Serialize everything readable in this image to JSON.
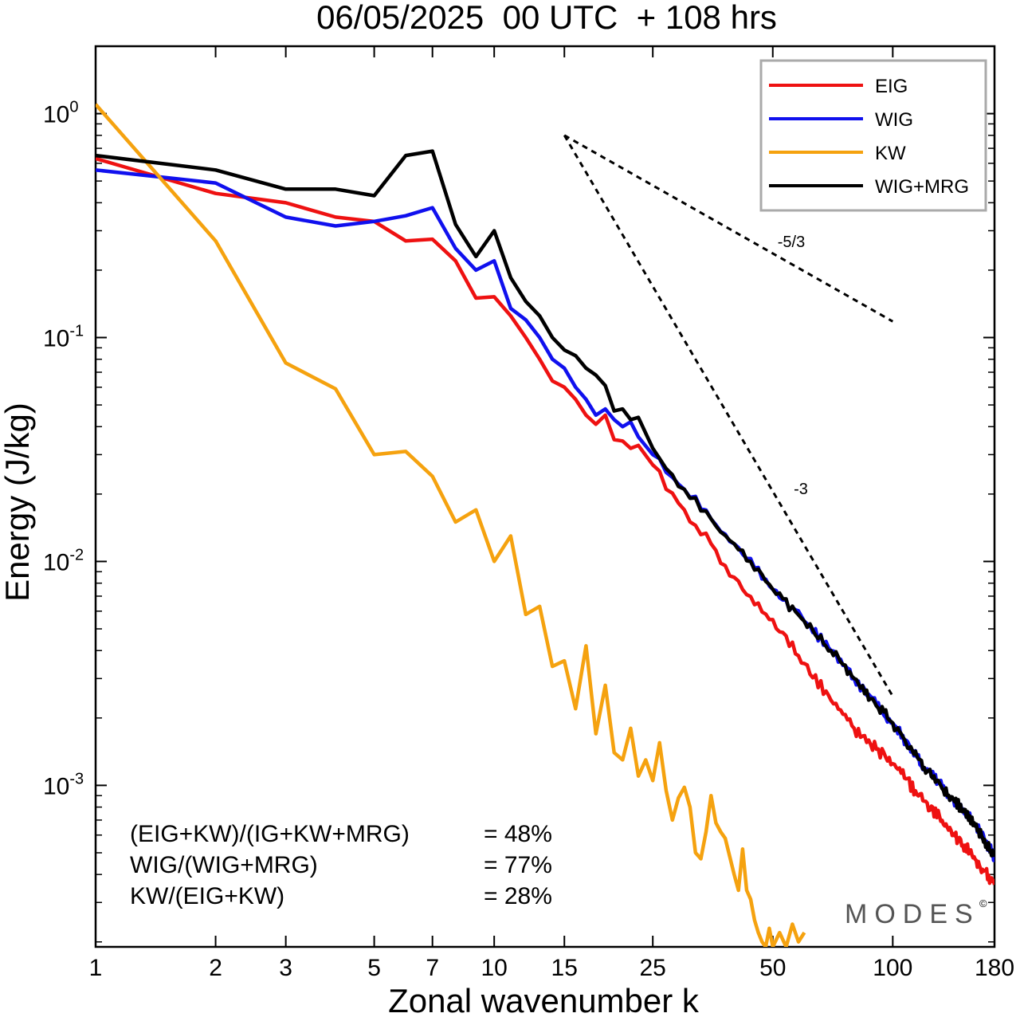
{
  "chart_data": {
    "type": "line",
    "title": "06/05/2025  00 UTC  + 108 hrs",
    "xlabel": "Zonal wavenumber k",
    "ylabel": "Energy (J/kg)",
    "xscale": "log",
    "yscale": "log",
    "xlim": [
      1,
      180
    ],
    "ylim": [
      0.00019,
      2.0
    ],
    "xticks": [
      1,
      2,
      3,
      5,
      7,
      10,
      15,
      25,
      50,
      100,
      180
    ],
    "xtick_labels": [
      "1",
      "2",
      "3",
      "5",
      "7",
      "10",
      "15",
      "25",
      "50",
      "100",
      "180"
    ],
    "yticks": [
      {
        "value": 1,
        "base": "10",
        "exp": "0"
      },
      {
        "value": 0.1,
        "base": "10",
        "exp": "-1"
      },
      {
        "value": 0.01,
        "base": "10",
        "exp": "-2"
      },
      {
        "value": 0.001,
        "base": "10",
        "exp": "-3"
      }
    ],
    "grid": false,
    "legend_position": "top-right",
    "series": [
      {
        "name": "EIG",
        "color": "#ee1111",
        "k_max": 180,
        "points": [
          [
            1,
            0.63
          ],
          [
            2,
            0.44
          ],
          [
            3,
            0.4
          ],
          [
            4,
            0.345
          ],
          [
            5,
            0.33
          ],
          [
            6,
            0.27
          ],
          [
            7,
            0.275
          ],
          [
            8,
            0.22
          ],
          [
            9,
            0.15
          ],
          [
            10,
            0.152
          ],
          [
            11,
            0.125
          ],
          [
            12,
            0.1
          ],
          [
            13,
            0.08
          ],
          [
            14,
            0.064
          ],
          [
            15,
            0.06
          ],
          [
            16,
            0.053
          ],
          [
            17,
            0.045
          ],
          [
            18,
            0.041
          ],
          [
            19,
            0.045
          ],
          [
            20,
            0.035
          ],
          [
            21,
            0.0345
          ],
          [
            22,
            0.032
          ],
          [
            23,
            0.033
          ],
          [
            25,
            0.027
          ],
          [
            27,
            0.021
          ],
          [
            30,
            0.017
          ],
          [
            35,
            0.012
          ],
          [
            40,
            0.0085
          ],
          [
            50,
            0.0055
          ],
          [
            60,
            0.0035
          ],
          [
            70,
            0.0024
          ],
          [
            80,
            0.0018
          ],
          [
            100,
            0.00125
          ],
          [
            120,
            0.00085
          ],
          [
            140,
            0.00063
          ],
          [
            160,
            0.00048
          ],
          [
            180,
            0.00036
          ]
        ]
      },
      {
        "name": "WIG",
        "color": "#1010ee",
        "k_max": 180,
        "points": [
          [
            1,
            0.56
          ],
          [
            2,
            0.49
          ],
          [
            3,
            0.345
          ],
          [
            4,
            0.315
          ],
          [
            5,
            0.33
          ],
          [
            6,
            0.35
          ],
          [
            7,
            0.38
          ],
          [
            8,
            0.25
          ],
          [
            9,
            0.2
          ],
          [
            10,
            0.22
          ],
          [
            11,
            0.135
          ],
          [
            12,
            0.12
          ],
          [
            13,
            0.1
          ],
          [
            14,
            0.08
          ],
          [
            15,
            0.073
          ],
          [
            16,
            0.06
          ],
          [
            17,
            0.053
          ],
          [
            18,
            0.045
          ],
          [
            19,
            0.048
          ],
          [
            20,
            0.043
          ],
          [
            21,
            0.04
          ],
          [
            22,
            0.042
          ],
          [
            23,
            0.036
          ],
          [
            25,
            0.03
          ],
          [
            27,
            0.025
          ],
          [
            30,
            0.021
          ],
          [
            35,
            0.0155
          ],
          [
            40,
            0.012
          ],
          [
            50,
            0.0075
          ],
          [
            60,
            0.0054
          ],
          [
            70,
            0.004
          ],
          [
            80,
            0.003
          ],
          [
            100,
            0.0019
          ],
          [
            120,
            0.0012
          ],
          [
            140,
            0.00089
          ],
          [
            160,
            0.00068
          ],
          [
            180,
            0.00048
          ]
        ]
      },
      {
        "name": "KW",
        "color": "#f5a20f",
        "k_max": 60,
        "points": [
          [
            1,
            1.1
          ],
          [
            2,
            0.27
          ],
          [
            3,
            0.077
          ],
          [
            4,
            0.059
          ],
          [
            5,
            0.03
          ],
          [
            6,
            0.031
          ],
          [
            7,
            0.024
          ],
          [
            8,
            0.015
          ],
          [
            9,
            0.017
          ],
          [
            10,
            0.01
          ],
          [
            11,
            0.013
          ],
          [
            12,
            0.0058
          ],
          [
            13,
            0.0063
          ],
          [
            14,
            0.0034
          ],
          [
            15,
            0.0036
          ],
          [
            16,
            0.0022
          ],
          [
            17,
            0.0042
          ],
          [
            18,
            0.0017
          ],
          [
            19,
            0.0028
          ],
          [
            20,
            0.0014
          ],
          [
            21,
            0.0013
          ],
          [
            22,
            0.0018
          ],
          [
            23,
            0.0011
          ],
          [
            24,
            0.0013
          ],
          [
            25,
            0.00105
          ],
          [
            26,
            0.00155
          ],
          [
            27,
            0.00095
          ],
          [
            28,
            0.0007
          ],
          [
            29,
            0.00088
          ],
          [
            30,
            0.00098
          ],
          [
            31,
            0.0008
          ],
          [
            32,
            0.0005
          ],
          [
            33,
            0.00047
          ],
          [
            34,
            0.00062
          ],
          [
            35,
            0.0009
          ],
          [
            36,
            0.00068
          ],
          [
            37,
            0.00062
          ],
          [
            38,
            0.00058
          ],
          [
            39,
            0.00048
          ],
          [
            40,
            0.0004
          ],
          [
            41,
            0.00034
          ],
          [
            42,
            0.00052
          ],
          [
            43,
            0.00034
          ],
          [
            44,
            0.00031
          ],
          [
            45,
            0.00025
          ],
          [
            46,
            0.00022
          ],
          [
            47,
            0.0002
          ],
          [
            48,
            0.00019
          ],
          [
            49,
            0.00023
          ],
          [
            50,
            0.00019
          ],
          [
            52,
            0.00022
          ],
          [
            54,
            0.00019
          ],
          [
            56,
            0.00024
          ],
          [
            58,
            0.0002
          ],
          [
            60,
            0.00022
          ]
        ]
      },
      {
        "name": "WIG+MRG",
        "color": "#000000",
        "k_max": 180,
        "points": [
          [
            1,
            0.65
          ],
          [
            2,
            0.56
          ],
          [
            3,
            0.46
          ],
          [
            4,
            0.46
          ],
          [
            5,
            0.43
          ],
          [
            6,
            0.65
          ],
          [
            7,
            0.68
          ],
          [
            8,
            0.32
          ],
          [
            9,
            0.23
          ],
          [
            10,
            0.3
          ],
          [
            11,
            0.185
          ],
          [
            12,
            0.145
          ],
          [
            13,
            0.125
          ],
          [
            14,
            0.1
          ],
          [
            15,
            0.088
          ],
          [
            16,
            0.083
          ],
          [
            17,
            0.073
          ],
          [
            18,
            0.068
          ],
          [
            19,
            0.061
          ],
          [
            20,
            0.047
          ],
          [
            21,
            0.048
          ],
          [
            22,
            0.043
          ],
          [
            23,
            0.044
          ],
          [
            25,
            0.032
          ],
          [
            27,
            0.026
          ],
          [
            30,
            0.021
          ],
          [
            35,
            0.0155
          ],
          [
            40,
            0.012
          ],
          [
            50,
            0.0075
          ],
          [
            60,
            0.0054
          ],
          [
            70,
            0.004
          ],
          [
            80,
            0.003
          ],
          [
            100,
            0.0019
          ],
          [
            120,
            0.0012
          ],
          [
            140,
            0.00089
          ],
          [
            160,
            0.00068
          ],
          [
            180,
            0.00048
          ]
        ]
      }
    ],
    "reference_slopes": [
      {
        "label": "-5/3",
        "k_start": 15,
        "e_start": 0.8,
        "k_end": 100,
        "e_end": 0.118
      },
      {
        "label": "-3",
        "k_start": 15,
        "e_start": 0.8,
        "k_end": 100,
        "e_end": 0.0025
      }
    ],
    "annotations": [
      {
        "left": "(EIG+KW)/(IG+KW+MRG)",
        "right": "= 48%"
      },
      {
        "left": "WIG/(WIG+MRG)",
        "right": "= 77%"
      },
      {
        "left": "KW/(EIG+KW)",
        "right": "= 28%"
      }
    ],
    "watermark": "MODES",
    "watermark_mark": "©"
  }
}
